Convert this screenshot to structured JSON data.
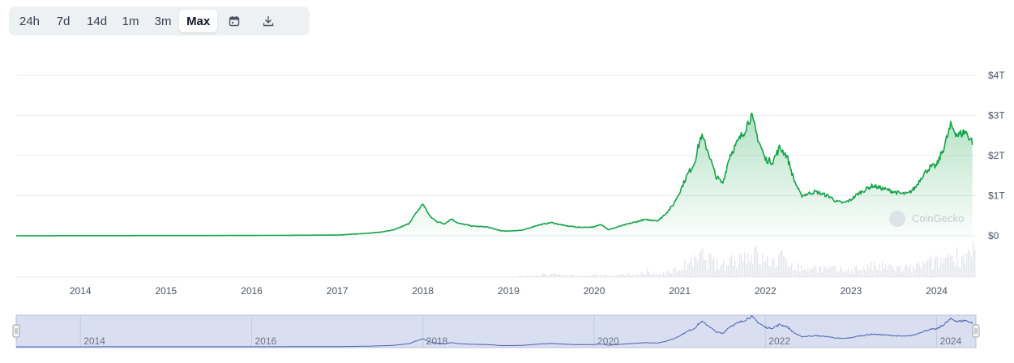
{
  "toolbar": {
    "ranges": [
      "24h",
      "7d",
      "14d",
      "1m",
      "3m",
      "Max"
    ],
    "active": "Max",
    "calendar_icon": "calendar-icon",
    "download_icon": "download-icon"
  },
  "watermark": "CoinGecko",
  "colors": {
    "line": "#16a34a",
    "fill_top": "#16a34a",
    "navigator_fill": "#d9dff0",
    "navigator_line": "#4a64b4",
    "volume": "#e5e7eb",
    "grid": "#e9ecef"
  },
  "chart_data": {
    "type": "area",
    "title": "",
    "xlabel": "",
    "ylabel": "",
    "x_ticks": [
      "2014",
      "2015",
      "2016",
      "2017",
      "2018",
      "2019",
      "2020",
      "2021",
      "2022",
      "2023",
      "2024"
    ],
    "y_ticks": [
      "$0",
      "$1T",
      "$2T",
      "$3T",
      "$4T"
    ],
    "ylim": [
      0,
      4
    ],
    "y_unit": "trillion USD",
    "xlim": [
      "2013-04",
      "2024-06"
    ],
    "series": [
      {
        "name": "",
        "points": [
          [
            "2013-04",
            0.002
          ],
          [
            "2016-01",
            0.008
          ],
          [
            "2017-01",
            0.018
          ],
          [
            "2017-05",
            0.06
          ],
          [
            "2017-07",
            0.09
          ],
          [
            "2017-09",
            0.15
          ],
          [
            "2017-11",
            0.3
          ],
          [
            "2017-12",
            0.55
          ],
          [
            "2018-01",
            0.8
          ],
          [
            "2018-02",
            0.48
          ],
          [
            "2018-03",
            0.35
          ],
          [
            "2018-04",
            0.3
          ],
          [
            "2018-05",
            0.42
          ],
          [
            "2018-06",
            0.31
          ],
          [
            "2018-08",
            0.24
          ],
          [
            "2018-10",
            0.22
          ],
          [
            "2018-12",
            0.12
          ],
          [
            "2019-01",
            0.12
          ],
          [
            "2019-03",
            0.14
          ],
          [
            "2019-05",
            0.26
          ],
          [
            "2019-07",
            0.33
          ],
          [
            "2019-09",
            0.25
          ],
          [
            "2019-11",
            0.21
          ],
          [
            "2020-01",
            0.22
          ],
          [
            "2020-02",
            0.29
          ],
          [
            "2020-03",
            0.15
          ],
          [
            "2020-05",
            0.26
          ],
          [
            "2020-08",
            0.4
          ],
          [
            "2020-10",
            0.38
          ],
          [
            "2020-11",
            0.55
          ],
          [
            "2020-12",
            0.75
          ],
          [
            "2021-01",
            1.1
          ],
          [
            "2021-02",
            1.5
          ],
          [
            "2021-03",
            1.8
          ],
          [
            "2021-04",
            2.5
          ],
          [
            "2021-05",
            2.1
          ],
          [
            "2021-06",
            1.5
          ],
          [
            "2021-07",
            1.3
          ],
          [
            "2021-08",
            2.0
          ],
          [
            "2021-09",
            2.3
          ],
          [
            "2021-10",
            2.6
          ],
          [
            "2021-11",
            3.0
          ],
          [
            "2021-12",
            2.4
          ],
          [
            "2022-01",
            1.9
          ],
          [
            "2022-02",
            1.85
          ],
          [
            "2022-03",
            2.2
          ],
          [
            "2022-04",
            2.0
          ],
          [
            "2022-05",
            1.4
          ],
          [
            "2022-06",
            1.0
          ],
          [
            "2022-08",
            1.1
          ],
          [
            "2022-10",
            0.98
          ],
          [
            "2022-11",
            0.85
          ],
          [
            "2022-12",
            0.82
          ],
          [
            "2023-01",
            0.9
          ],
          [
            "2023-02",
            1.05
          ],
          [
            "2023-03",
            1.15
          ],
          [
            "2023-04",
            1.25
          ],
          [
            "2023-06",
            1.15
          ],
          [
            "2023-08",
            1.05
          ],
          [
            "2023-09",
            1.05
          ],
          [
            "2023-10",
            1.2
          ],
          [
            "2023-11",
            1.5
          ],
          [
            "2023-12",
            1.7
          ],
          [
            "2024-01",
            1.75
          ],
          [
            "2024-02",
            2.2
          ],
          [
            "2024-03",
            2.75
          ],
          [
            "2024-04",
            2.5
          ],
          [
            "2024-05",
            2.6
          ],
          [
            "2024-06",
            2.35
          ]
        ]
      }
    ],
    "navigator_ticks": [
      "2014",
      "2016",
      "2018",
      "2020",
      "2022",
      "2024"
    ],
    "grid": true,
    "legend": "none"
  }
}
